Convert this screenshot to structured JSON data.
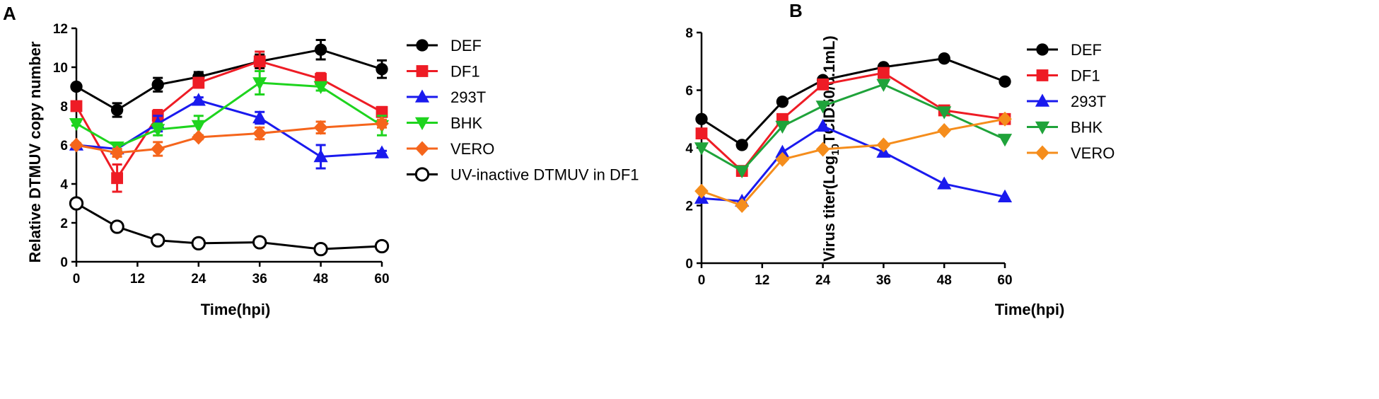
{
  "chart_data": [
    {
      "type": "line",
      "panel_label": "A",
      "xlabel": "Time(hpi)",
      "ylabel": "Relative DTMUV copy number",
      "xlim": [
        0,
        60
      ],
      "ylim": [
        0,
        12
      ],
      "xticks": [
        0,
        12,
        24,
        36,
        48,
        60
      ],
      "yticks": [
        0,
        2,
        4,
        6,
        8,
        10,
        12
      ],
      "grid": false,
      "legend_position": "right",
      "x": [
        0,
        8,
        16,
        24,
        36,
        48,
        60
      ],
      "series": [
        {
          "name": "DEF",
          "color": "#000000",
          "marker": "circle",
          "values": [
            9.0,
            7.8,
            9.1,
            9.5,
            10.3,
            10.9,
            9.9
          ],
          "errors": [
            0.0,
            0.35,
            0.35,
            0.25,
            0.35,
            0.5,
            0.45
          ]
        },
        {
          "name": "DF1",
          "color": "#ee1c25",
          "marker": "square",
          "values": [
            8.0,
            4.3,
            7.5,
            9.2,
            10.3,
            9.4,
            7.7
          ],
          "errors": [
            0.1,
            0.7,
            0.3,
            0.25,
            0.5,
            0.3,
            0.25
          ]
        },
        {
          "name": "293T",
          "color": "#1a1aee",
          "marker": "triangle-up",
          "values": [
            6.0,
            5.8,
            7.1,
            8.3,
            7.4,
            5.4,
            5.6
          ],
          "errors": [
            0.0,
            0.2,
            0.4,
            0.15,
            0.3,
            0.6,
            0.1
          ]
        },
        {
          "name": "BHK",
          "color": "#1ed41e",
          "marker": "triangle-down",
          "values": [
            7.1,
            5.9,
            6.8,
            7.0,
            9.2,
            9.0,
            7.0
          ],
          "errors": [
            0.1,
            0.2,
            0.3,
            0.5,
            0.6,
            0.2,
            0.5
          ]
        },
        {
          "name": "VERO",
          "color": "#f5651c",
          "marker": "diamond",
          "values": [
            6.0,
            5.6,
            5.8,
            6.4,
            6.6,
            6.9,
            7.1
          ],
          "errors": [
            0.1,
            0.2,
            0.35,
            0.1,
            0.3,
            0.3,
            0.2
          ]
        },
        {
          "name": "UV-inactive DTMUV in DF1",
          "color": "#000000",
          "marker": "open-circle",
          "values": [
            3.0,
            1.8,
            1.1,
            0.95,
            1.0,
            0.65,
            0.8
          ],
          "errors": [
            0,
            0,
            0,
            0,
            0,
            0,
            0
          ]
        }
      ]
    },
    {
      "type": "line",
      "panel_label": "B",
      "xlabel": "Time(hpi)",
      "ylabel_prefix": "Virus titer(Log",
      "ylabel_sub": "10",
      "ylabel_suffix": "TCID50/0.1mL)",
      "xlim": [
        0,
        60
      ],
      "ylim": [
        0,
        8
      ],
      "xticks": [
        0,
        12,
        24,
        36,
        48,
        60
      ],
      "yticks": [
        0,
        2,
        4,
        6,
        8
      ],
      "grid": false,
      "legend_position": "right",
      "x": [
        0,
        8,
        16,
        24,
        36,
        48,
        60
      ],
      "series": [
        {
          "name": "DEF",
          "color": "#000000",
          "marker": "circle",
          "values": [
            5.0,
            4.1,
            5.6,
            6.35,
            6.8,
            7.1,
            6.3
          ]
        },
        {
          "name": "DF1",
          "color": "#ee1c25",
          "marker": "square",
          "values": [
            4.5,
            3.2,
            5.0,
            6.2,
            6.6,
            5.3,
            5.0
          ]
        },
        {
          "name": "293T",
          "color": "#1a1aee",
          "marker": "triangle-up",
          "values": [
            2.25,
            2.15,
            3.85,
            4.75,
            3.85,
            2.75,
            2.3
          ]
        },
        {
          "name": "BHK",
          "color": "#1fa33a",
          "marker": "triangle-down",
          "values": [
            4.0,
            3.2,
            4.75,
            5.45,
            6.2,
            5.25,
            4.3
          ]
        },
        {
          "name": "VERO",
          "color": "#f58d1c",
          "marker": "diamond",
          "values": [
            2.5,
            2.0,
            3.6,
            3.95,
            4.1,
            4.6,
            5.0
          ]
        }
      ]
    }
  ]
}
